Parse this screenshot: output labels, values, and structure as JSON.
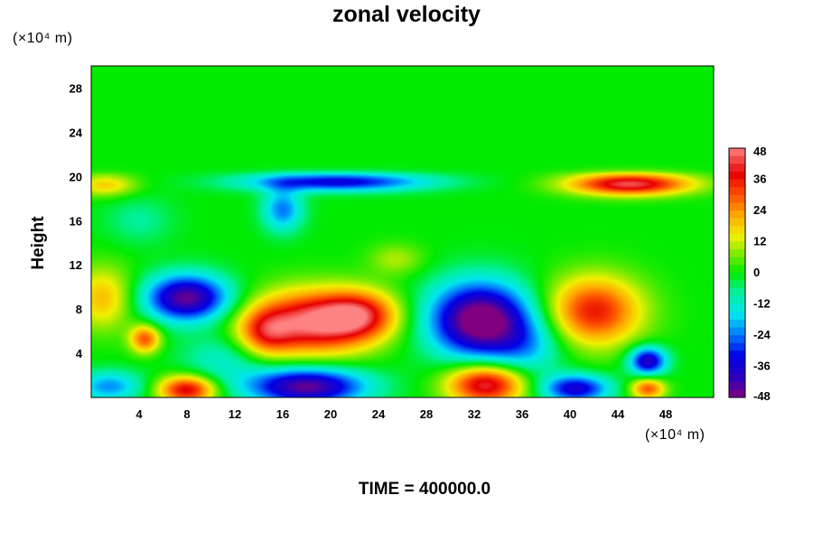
{
  "chart_data": {
    "type": "heatmap",
    "title": "zonal velocity",
    "xlabel": "",
    "ylabel": "Height",
    "x_unit": "(×10⁴ m)",
    "y_unit": "(×10⁴ m)",
    "xlim": [
      0,
      52
    ],
    "ylim": [
      0,
      30
    ],
    "x_ticks": [
      4,
      8,
      12,
      16,
      20,
      24,
      28,
      32,
      36,
      40,
      44,
      48
    ],
    "y_ticks": [
      4,
      8,
      12,
      16,
      20,
      24,
      28
    ],
    "colorbar": {
      "min": -48,
      "max": 48,
      "ticks": [
        -48,
        -36,
        -24,
        -12,
        0,
        12,
        24,
        36,
        48
      ]
    },
    "background_value": 0,
    "features": [
      {
        "x": 18.5,
        "y": 6.8,
        "sx": 3.6,
        "sy": 2.0,
        "value": 46
      },
      {
        "x": 22.5,
        "y": 7.5,
        "sx": 2.2,
        "sy": 1.5,
        "value": 28
      },
      {
        "x": 14.5,
        "y": 5.8,
        "sx": 1.6,
        "sy": 1.5,
        "value": 22
      },
      {
        "x": 42.0,
        "y": 7.8,
        "sx": 2.8,
        "sy": 2.2,
        "value": 36
      },
      {
        "x": 45.0,
        "y": 19.3,
        "sx": 3.6,
        "sy": 0.7,
        "value": 44
      },
      {
        "x": 33.0,
        "y": 1.2,
        "sx": 2.3,
        "sy": 1.3,
        "value": 44
      },
      {
        "x": 8.0,
        "y": 0.7,
        "sx": 1.7,
        "sy": 0.9,
        "value": 40
      },
      {
        "x": 4.5,
        "y": 5.3,
        "sx": 0.9,
        "sy": 0.9,
        "value": 30
      },
      {
        "x": 1.0,
        "y": 9.0,
        "sx": 1.8,
        "sy": 2.0,
        "value": 20
      },
      {
        "x": 1.2,
        "y": 19.2,
        "sx": 1.8,
        "sy": 0.7,
        "value": 18
      },
      {
        "x": 46.5,
        "y": 0.8,
        "sx": 1.0,
        "sy": 0.7,
        "value": 30
      },
      {
        "x": 25.5,
        "y": 12.5,
        "sx": 1.6,
        "sy": 1.0,
        "value": 10
      },
      {
        "x": 32.5,
        "y": 7.0,
        "sx": 3.0,
        "sy": 2.4,
        "value": -54
      },
      {
        "x": 8.0,
        "y": 9.0,
        "sx": 2.5,
        "sy": 1.5,
        "value": -46
      },
      {
        "x": 18.0,
        "y": 1.0,
        "sx": 3.5,
        "sy": 1.2,
        "value": -46
      },
      {
        "x": 40.5,
        "y": 0.8,
        "sx": 2.0,
        "sy": 0.9,
        "value": -36
      },
      {
        "x": 46.5,
        "y": 3.3,
        "sx": 1.1,
        "sy": 0.9,
        "value": -40
      },
      {
        "x": 20.5,
        "y": 19.5,
        "sx": 5.5,
        "sy": 0.6,
        "value": -34
      },
      {
        "x": 16.0,
        "y": 17.0,
        "sx": 1.2,
        "sy": 1.4,
        "value": -24
      },
      {
        "x": 1.5,
        "y": 1.0,
        "sx": 2.0,
        "sy": 1.0,
        "value": -22
      },
      {
        "x": 36.5,
        "y": 4.5,
        "sx": 2.2,
        "sy": 2.0,
        "value": -14
      },
      {
        "x": 11.0,
        "y": 3.5,
        "sx": 2.5,
        "sy": 1.6,
        "value": -12
      },
      {
        "x": 4.0,
        "y": 16.0,
        "sx": 2.0,
        "sy": 1.5,
        "value": -8
      }
    ],
    "time_label": "TIME = 400000.0"
  }
}
